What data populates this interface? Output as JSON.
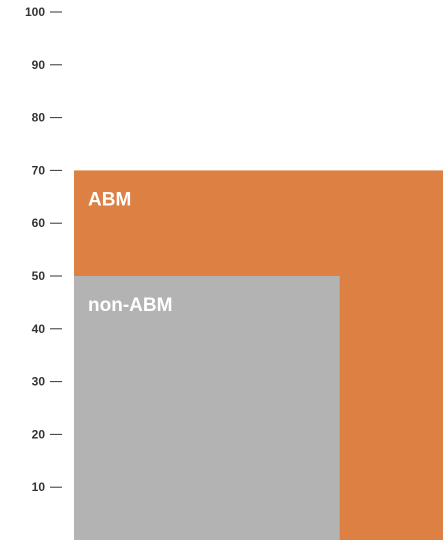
{
  "chart_data": {
    "type": "area",
    "title": "",
    "xlabel": "",
    "ylabel": "",
    "ylim": [
      0,
      100
    ],
    "y_ticks": [
      10,
      20,
      30,
      40,
      50,
      60,
      70,
      80,
      90,
      100
    ],
    "grid": false,
    "series": [
      {
        "name": "ABM",
        "value": 70,
        "relative_width": 1.0,
        "color": "#dc8143"
      },
      {
        "name": "non-ABM",
        "value": 50,
        "relative_width": 0.72,
        "color": "#b3b3b3"
      }
    ]
  }
}
